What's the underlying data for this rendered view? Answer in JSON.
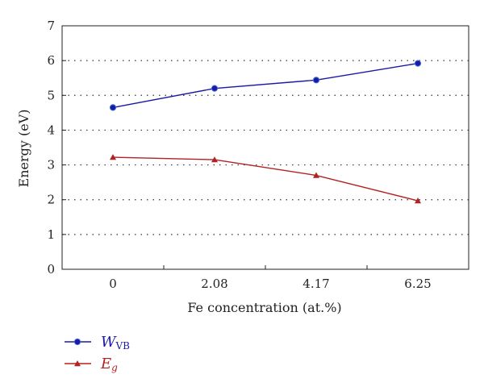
{
  "chart_data": {
    "type": "line",
    "title": "",
    "xlabel": "Fe concentration (at.%)",
    "ylabel": "Energy (eV)",
    "categories": [
      "0",
      "2.08",
      "4.17",
      "6.25"
    ],
    "ylim": [
      0,
      7
    ],
    "yticks": [
      0,
      1,
      2,
      3,
      4,
      5,
      6,
      7
    ],
    "grid": "horizontal dotted",
    "legend_position": "bottom-left",
    "series": [
      {
        "name": "W",
        "name_subscript": "VB",
        "values": [
          4.65,
          5.2,
          5.44,
          5.92
        ],
        "color": "#1a1aa6",
        "marker": "circle"
      },
      {
        "name": "E",
        "name_subscript": "g",
        "values": [
          3.22,
          3.15,
          2.7,
          1.97
        ],
        "color": "#b22222",
        "marker": "triangle"
      }
    ]
  }
}
